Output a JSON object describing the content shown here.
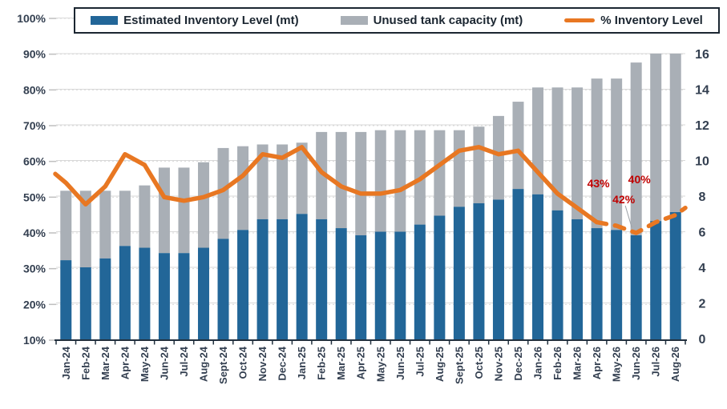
{
  "legend": {
    "items": [
      {
        "label": "Estimated Inventory Level (mt)",
        "color": "#226698",
        "swatch": "box"
      },
      {
        "label": "Unused tank capacity (mt)",
        "color": "#A9AFB6",
        "swatch": "box"
      },
      {
        "label": "% Inventory Level",
        "color": "#E87722",
        "swatch": "line"
      }
    ]
  },
  "colors": {
    "inventory_bar": "#226698",
    "unused_bar": "#A9AFB6",
    "pct_line": "#E87722",
    "annotation_red": "#C00000",
    "axis_text": "#333F50",
    "grid": "#D9D9D9",
    "axis_line": "#22303E"
  },
  "chart_data": {
    "type": "bar",
    "subtype": "stacked-bars-with-line-overlay",
    "title": "",
    "categories": [
      "Jan-24",
      "Feb-24",
      "Mar-24",
      "Apr-24",
      "May-24",
      "Jun-24",
      "Jul-24",
      "Aug-24",
      "Sept-24",
      "Oct-24",
      "Nov-24",
      "Dec-24",
      "Jan-25",
      "Feb-25",
      "Mar-25",
      "Apr-25",
      "May-25",
      "Jun-25",
      "Jul-25",
      "Aug-25",
      "Sept-25",
      "Oct-25",
      "Nov-25",
      "Dec-25",
      "Jan-26",
      "Feb-26",
      "Mar-26",
      "Apr-26",
      "May-26",
      "Jun-26",
      "Jul-26",
      "Aug-26"
    ],
    "series": [
      {
        "name": "Estimated Inventory Level (mt)",
        "type": "bar",
        "stacked": true,
        "axis": "right",
        "values": [
          4.4,
          4.0,
          4.5,
          5.2,
          5.1,
          4.8,
          4.8,
          5.1,
          5.6,
          6.1,
          6.7,
          6.7,
          7.0,
          6.7,
          6.2,
          5.8,
          6.0,
          6.0,
          6.4,
          6.9,
          7.4,
          7.6,
          7.8,
          8.4,
          8.1,
          7.2,
          6.7,
          6.2,
          6.1,
          5.8,
          6.6,
          7.1
        ]
      },
      {
        "name": "Unused tank capacity (mt)",
        "type": "bar",
        "stacked": true,
        "axis": "right",
        "values": [
          3.9,
          4.3,
          3.8,
          3.1,
          3.5,
          4.8,
          4.8,
          4.8,
          5.1,
          4.7,
          4.2,
          4.2,
          4.0,
          4.9,
          5.4,
          5.8,
          5.7,
          5.7,
          5.3,
          4.8,
          4.3,
          4.3,
          4.7,
          4.9,
          6.0,
          6.9,
          7.4,
          8.4,
          8.5,
          9.7,
          9.4,
          8.9
        ]
      },
      {
        "name": "Total tank capacity (mt)",
        "type": "derived-stack-total",
        "axis": "right",
        "values": [
          8.3,
          8.3,
          8.3,
          8.3,
          8.6,
          9.6,
          9.6,
          9.9,
          10.7,
          10.8,
          10.9,
          10.9,
          11.0,
          11.6,
          11.6,
          11.6,
          11.7,
          11.7,
          11.7,
          11.7,
          11.7,
          11.9,
          12.5,
          13.3,
          14.1,
          14.1,
          14.1,
          14.6,
          14.6,
          15.5,
          16.0,
          16.0
        ]
      },
      {
        "name": "% Inventory Level",
        "type": "line",
        "axis": "left",
        "values": [
          54,
          48,
          53,
          62,
          59,
          50,
          49,
          50,
          52,
          56,
          62,
          61,
          64,
          57,
          53,
          51,
          51,
          52,
          55,
          59,
          63,
          64,
          62,
          63,
          57,
          51,
          47,
          43,
          42,
          40,
          43,
          45
        ],
        "edge_start_pct": 56.5,
        "edge_end_pct": 47,
        "dashed_from_category": "Apr-26"
      }
    ],
    "left_axis": {
      "min": 10,
      "max": 100,
      "tick_labels": [
        "100%",
        "90%",
        "80%",
        "70%",
        "60%",
        "50%",
        "40%",
        "30%",
        "20%",
        "10%"
      ],
      "tick_values": [
        100,
        90,
        80,
        70,
        60,
        50,
        40,
        30,
        20,
        10
      ]
    },
    "right_axis": {
      "min": 0,
      "max": 16,
      "tick_labels": [
        "16",
        "14",
        "12",
        "10",
        "8",
        "6",
        "4",
        "2",
        "0"
      ],
      "tick_values": [
        16,
        14,
        12,
        10,
        8,
        6,
        4,
        2,
        0
      ]
    },
    "annotations": [
      {
        "text": "43%",
        "month": "Apr-26"
      },
      {
        "text": "42%",
        "month": "May-26",
        "leader_line": true
      },
      {
        "text": "40%",
        "month": "Jun-26"
      }
    ],
    "grid": true,
    "legend_position": "top"
  }
}
